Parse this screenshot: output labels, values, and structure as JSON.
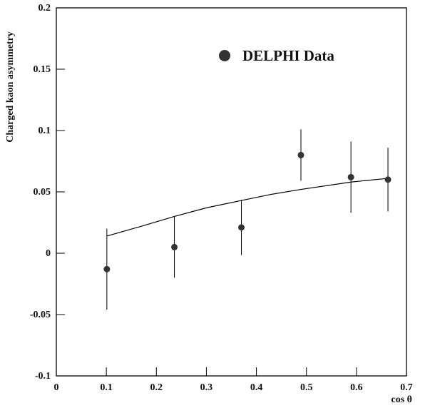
{
  "chart_data": {
    "type": "scatter",
    "xlabel": "cos θ",
    "ylabel": "Charged kaon asymmetry",
    "xlim": [
      0,
      0.7
    ],
    "ylim": [
      -0.1,
      0.2
    ],
    "xticks": [
      0,
      0.1,
      0.2,
      0.3,
      0.4,
      0.5,
      0.6,
      0.7
    ],
    "yticks": [
      -0.1,
      -0.05,
      0,
      0.05,
      0.1,
      0.15,
      0.2
    ],
    "series": [
      {
        "name": "DELPHI Data",
        "color": "#333333",
        "x": [
          0.101,
          0.236,
          0.37,
          0.489,
          0.589,
          0.663
        ],
        "y": [
          -0.013,
          0.005,
          0.021,
          0.08,
          0.062,
          0.06
        ],
        "errors": [
          0.033,
          0.025,
          0.0225,
          0.021,
          0.029,
          0.026
        ]
      }
    ],
    "fit": {
      "color": "#000000",
      "x": [
        0.101,
        0.17,
        0.236,
        0.3,
        0.37,
        0.43,
        0.489,
        0.589,
        0.663
      ],
      "y": [
        0.014,
        0.022,
        0.03,
        0.037,
        0.043,
        0.048,
        0.052,
        0.058,
        0.061
      ]
    },
    "legend": "upper right"
  }
}
